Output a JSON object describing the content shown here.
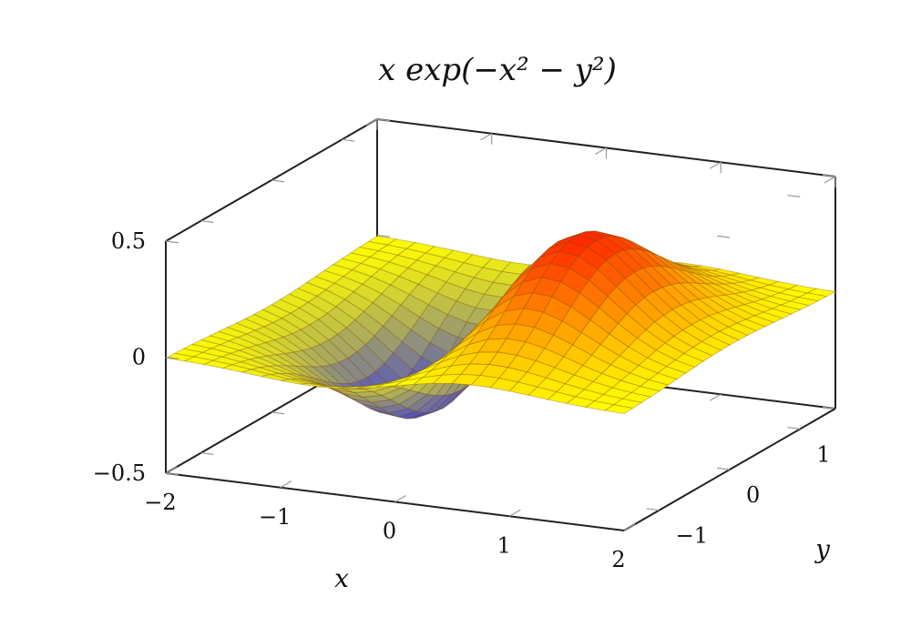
{
  "chart_data": {
    "type": "surface",
    "title": "x exp(−x² − y²)",
    "function": "x*exp(-x^2-y^2)",
    "xlabel": "x",
    "ylabel": "y",
    "zlabel": "",
    "xlim": [
      -2,
      2
    ],
    "ylim": [
      -1.5,
      1.5
    ],
    "zlim": [
      -0.5,
      0.5
    ],
    "x_ticks": [
      -2,
      -1,
      0,
      1,
      2
    ],
    "x_tick_labels": [
      "−2",
      "−1",
      "0",
      "1",
      "2"
    ],
    "y_ticks": [
      -1,
      0,
      1
    ],
    "y_tick_labels": [
      "−1",
      "0",
      "1"
    ],
    "z_ticks": [
      -0.5,
      0,
      0.5
    ],
    "z_tick_labels": [
      "−0.5",
      "0",
      "0.5"
    ],
    "samples_x": 25,
    "samples_y": 25,
    "colormap": [
      "#1a1aff",
      "#ffff00",
      "#ff0000"
    ],
    "grid": false,
    "legend": "none"
  }
}
